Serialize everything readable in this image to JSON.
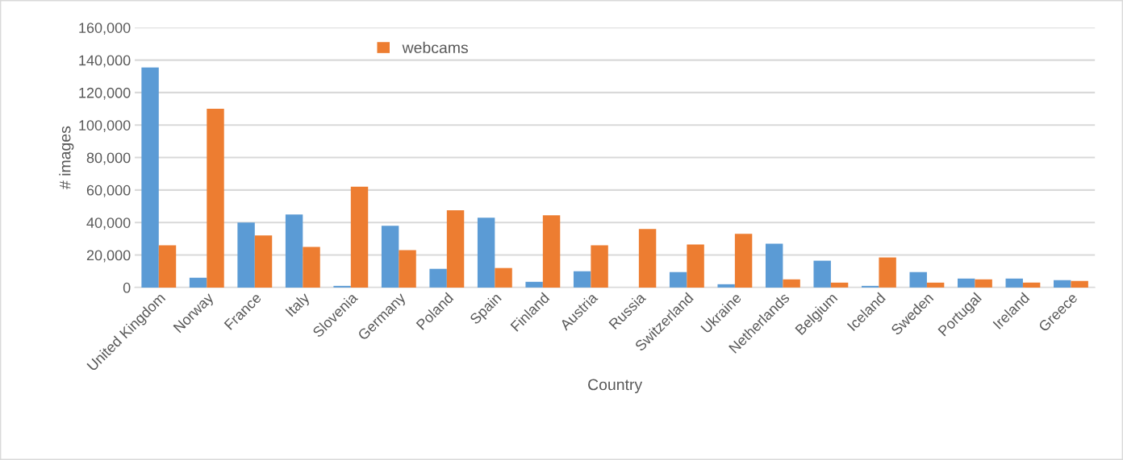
{
  "chart_data": {
    "type": "bar",
    "xlabel": "Country",
    "ylabel": "# images",
    "categories": [
      "United Kingdom",
      "Norway",
      "France",
      "Italy",
      "Slovenia",
      "Germany",
      "Poland",
      "Spain",
      "Finland",
      "Austria",
      "Russia",
      "Switzerland",
      "Ukraine",
      "Netherlands",
      "Belgium",
      "Iceland",
      "Sweden",
      "Portugal",
      "Ireland",
      "Greece"
    ],
    "series": [
      {
        "color": "#5b9bd5",
        "values": [
          135500,
          6000,
          40000,
          45000,
          1000,
          38000,
          11500,
          43000,
          3500,
          10000,
          0,
          9500,
          2000,
          27000,
          16500,
          1000,
          9500,
          5500,
          5500,
          4500
        ]
      },
      {
        "name": "webcams",
        "color": "#ed7d31",
        "values": [
          26000,
          110000,
          32000,
          25000,
          62000,
          23000,
          47500,
          12000,
          44500,
          26000,
          36000,
          26500,
          33000,
          5000,
          3000,
          18500,
          3000,
          5000,
          3000,
          4000
        ]
      }
    ],
    "ylim": [
      0,
      160000
    ],
    "yticks": [
      {
        "value": 0,
        "label": "0"
      },
      {
        "value": 20000,
        "label": "20,000"
      },
      {
        "value": 40000,
        "label": "40,000"
      },
      {
        "value": 60000,
        "label": "60,000"
      },
      {
        "value": 80000,
        "label": "80,000"
      },
      {
        "value": 100000,
        "label": "100,000"
      },
      {
        "value": 120000,
        "label": "120,000"
      },
      {
        "value": 140000,
        "label": "140,000"
      },
      {
        "value": 160000,
        "label": "160,000"
      }
    ],
    "grid": "y",
    "legend": "top"
  }
}
